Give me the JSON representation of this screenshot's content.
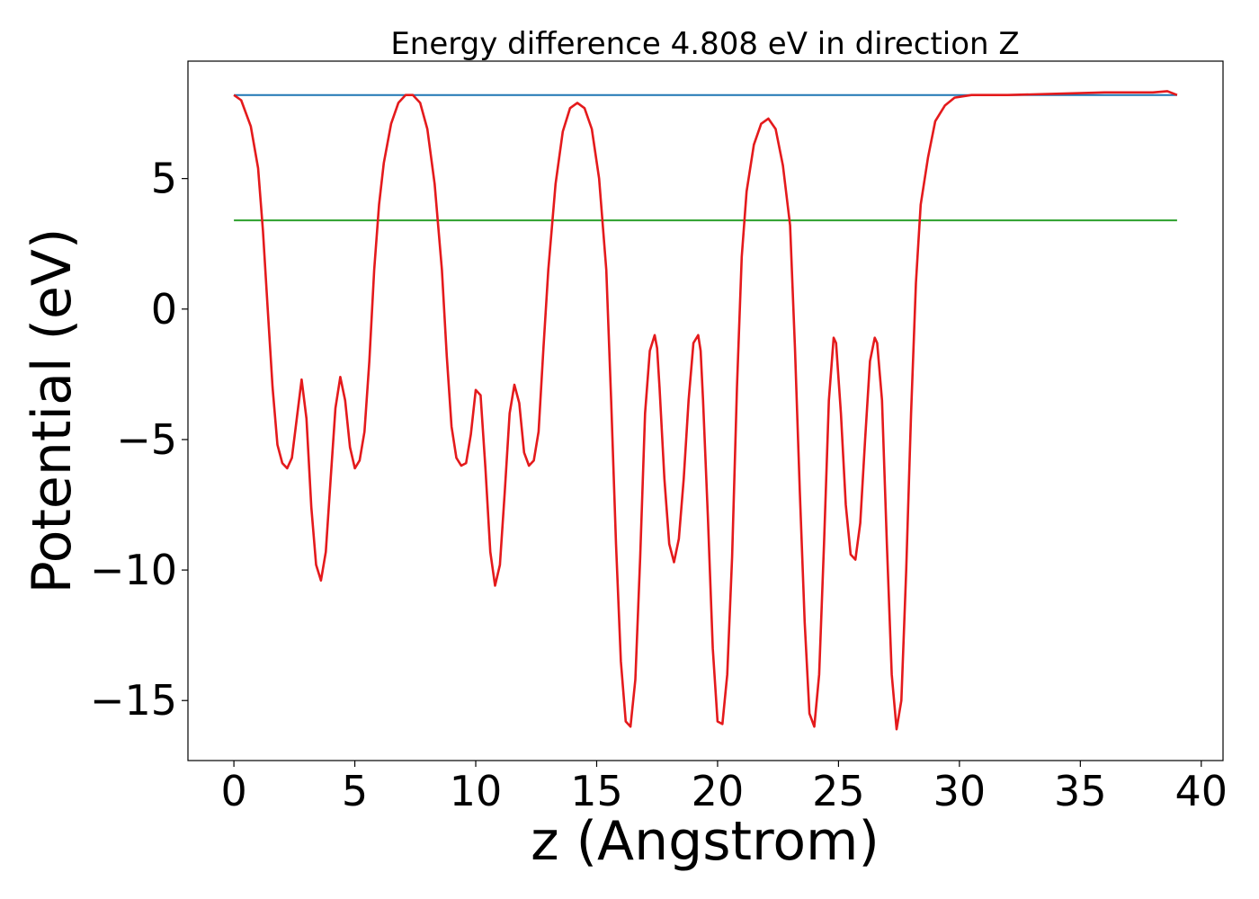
{
  "chart_data": {
    "type": "line",
    "title": "Energy difference 4.808 eV in direction Z",
    "xlabel": "z (Angstrom)",
    "ylabel": "Potential (eV)",
    "xlim": [
      -1.9,
      40.9
    ],
    "ylim": [
      -17.3,
      9.5
    ],
    "x_ticks": [
      0,
      5,
      10,
      15,
      20,
      25,
      30,
      35,
      40
    ],
    "y_ticks": [
      -15,
      -10,
      -5,
      0,
      5
    ],
    "x_tick_labels": [
      "0",
      "5",
      "10",
      "15",
      "20",
      "25",
      "30",
      "35",
      "40"
    ],
    "y_tick_labels": [
      "−15",
      "−10",
      "−5",
      "0",
      "5"
    ],
    "grid": false,
    "series": [
      {
        "color": "#1f77b4",
        "x": [
          0,
          39
        ],
        "y": [
          8.2,
          8.2
        ]
      },
      {
        "color": "#2ca02c",
        "x": [
          0,
          39
        ],
        "y": [
          3.4,
          3.4
        ]
      },
      {
        "color": "#e41a1c",
        "x": [
          0,
          0.3,
          0.7,
          1.0,
          1.2,
          1.4,
          1.6,
          1.8,
          2.0,
          2.2,
          2.4,
          2.6,
          2.8,
          3.0,
          3.2,
          3.4,
          3.6,
          3.8,
          4.0,
          4.2,
          4.4,
          4.6,
          4.8,
          5.0,
          5.2,
          5.4,
          5.6,
          5.8,
          6.0,
          6.2,
          6.5,
          6.8,
          7.1,
          7.4,
          7.7,
          8.0,
          8.3,
          8.6,
          8.8,
          9.0,
          9.2,
          9.4,
          9.6,
          9.8,
          10.0,
          10.2,
          10.4,
          10.6,
          10.8,
          11.0,
          11.2,
          11.4,
          11.6,
          11.8,
          12.0,
          12.2,
          12.4,
          12.6,
          12.8,
          13.0,
          13.3,
          13.6,
          13.9,
          14.2,
          14.5,
          14.8,
          15.1,
          15.4,
          15.6,
          15.8,
          16.0,
          16.2,
          16.4,
          16.6,
          16.8,
          17.0,
          17.2,
          17.4,
          17.5,
          17.6,
          17.8,
          18.0,
          18.2,
          18.4,
          18.6,
          18.8,
          19.0,
          19.2,
          19.3,
          19.4,
          19.6,
          19.8,
          20.0,
          20.2,
          20.4,
          20.6,
          20.8,
          21.0,
          21.2,
          21.5,
          21.8,
          22.1,
          22.4,
          22.7,
          23.0,
          23.2,
          23.4,
          23.6,
          23.8,
          24.0,
          24.2,
          24.4,
          24.6,
          24.8,
          24.9,
          25.1,
          25.3,
          25.5,
          25.7,
          25.9,
          26.1,
          26.3,
          26.5,
          26.6,
          26.8,
          27.0,
          27.2,
          27.4,
          27.6,
          27.8,
          28.0,
          28.2,
          28.4,
          28.7,
          29.0,
          29.4,
          29.8,
          30.5,
          32,
          34,
          36,
          38,
          38.6,
          39
        ],
        "y": [
          8.2,
          8.0,
          7.0,
          5.4,
          3.0,
          0.0,
          -3.0,
          -5.2,
          -5.9,
          -6.1,
          -5.7,
          -4.2,
          -2.7,
          -4.2,
          -7.6,
          -9.8,
          -10.4,
          -9.3,
          -6.5,
          -3.8,
          -2.6,
          -3.5,
          -5.3,
          -6.1,
          -5.8,
          -4.7,
          -2.0,
          1.5,
          4.0,
          5.6,
          7.1,
          7.9,
          8.2,
          8.2,
          7.9,
          6.9,
          4.8,
          1.5,
          -1.8,
          -4.5,
          -5.7,
          -6.0,
          -5.9,
          -4.8,
          -3.1,
          -3.3,
          -6.1,
          -9.3,
          -10.6,
          -9.8,
          -7.0,
          -4.0,
          -2.9,
          -3.6,
          -5.5,
          -6.0,
          -5.8,
          -4.7,
          -1.5,
          1.5,
          4.8,
          6.8,
          7.7,
          7.9,
          7.7,
          6.9,
          5.0,
          1.5,
          -3.5,
          -9.0,
          -13.5,
          -15.8,
          -16.0,
          -14.2,
          -9.5,
          -4.0,
          -1.6,
          -1.0,
          -1.5,
          -3.0,
          -6.5,
          -9.0,
          -9.7,
          -8.8,
          -6.5,
          -3.5,
          -1.3,
          -1.0,
          -1.6,
          -3.5,
          -8.0,
          -13.0,
          -15.8,
          -15.9,
          -14.0,
          -9.5,
          -3.0,
          2.0,
          4.5,
          6.3,
          7.1,
          7.3,
          6.9,
          5.5,
          3.2,
          -1.5,
          -7.0,
          -12.0,
          -15.5,
          -16.0,
          -14.0,
          -9.0,
          -3.5,
          -1.1,
          -1.3,
          -4.0,
          -7.5,
          -9.4,
          -9.6,
          -8.2,
          -5.0,
          -2.0,
          -1.1,
          -1.3,
          -3.5,
          -9.0,
          -14.0,
          -16.1,
          -15.0,
          -10.0,
          -4.0,
          1.0,
          4.0,
          5.8,
          7.2,
          7.8,
          8.1,
          8.2,
          8.2,
          8.25,
          8.3,
          8.3,
          8.35,
          8.2
        ]
      }
    ]
  }
}
